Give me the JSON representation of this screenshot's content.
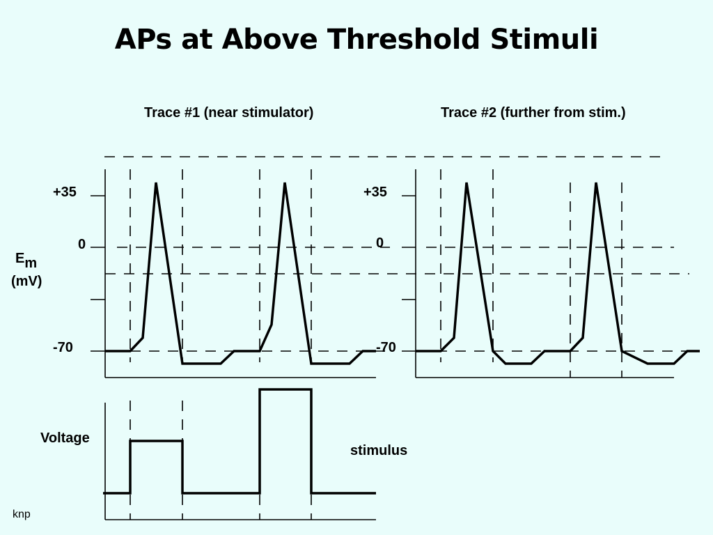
{
  "title": "APs at Above Threshold Stimuli",
  "trace1_title": "Trace #1 (near stimulator)",
  "trace2_title": "Trace #2 (further from stim.)",
  "y_axis": {
    "label_main": "E",
    "label_sub": "m",
    "unit": "(mV)",
    "ticks": [
      "+35",
      "0",
      "-70"
    ]
  },
  "stimulus_axis_label": "Voltage",
  "stimulus_caption": "stimulus",
  "credit": "knp"
}
